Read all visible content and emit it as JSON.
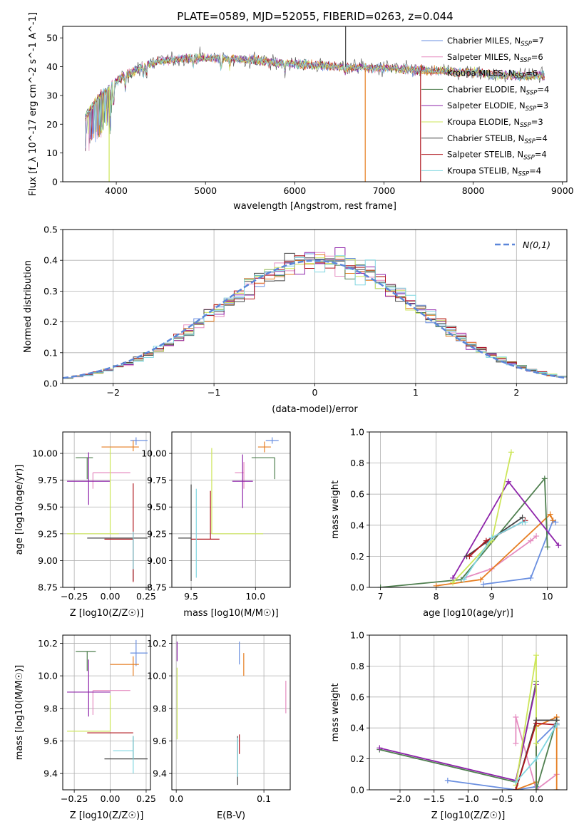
{
  "figure": {
    "title": "PLATE=0589, MJD=52055, FIBERID=0263, z=0.044"
  },
  "palette": {
    "blue": "#6a8fe0",
    "pink": "#e58cc0",
    "orange": "#e67e22",
    "darkgreen": "#4f7f4f",
    "purple": "#8e24aa",
    "lime": "#cde65a",
    "darkgray": "#444444",
    "red": "#b0171f",
    "cyan": "#7fd6e0",
    "gaussian": "#5b86d9",
    "grid": "#b0b0b0"
  },
  "chart_data": [
    {
      "id": "spectrum",
      "type": "line",
      "title": "PLATE=0589, MJD=52055, FIBERID=0263, z=0.044",
      "xlabel": "wavelength [Angstrom, rest frame]",
      "ylabel": "Flux [f_λ 10^-17 erg cm^-2 s^-1 A^-1]",
      "xlim": [
        3400,
        9050
      ],
      "ylim": [
        0,
        54
      ],
      "xticks": [
        4000,
        5000,
        6000,
        7000,
        8000,
        9000
      ],
      "yticks": [
        0,
        10,
        20,
        30,
        40,
        50
      ],
      "grid": false,
      "legend_position": "top-right",
      "legend": [
        {
          "label": "Chabrier MILES, N_SSP=7",
          "color": "blue"
        },
        {
          "label": "Salpeter MILES, N_SSP=6",
          "color": "pink"
        },
        {
          "label": "Kroupa MILES, N_SSP=6",
          "color": "orange"
        },
        {
          "label": "Chabrier ELODIE, N_SSP=4",
          "color": "darkgreen"
        },
        {
          "label": "Salpeter ELODIE, N_SSP=3",
          "color": "purple"
        },
        {
          "label": "Kroupa ELODIE, N_SSP=3",
          "color": "lime"
        },
        {
          "label": "Chabrier STELIB, N_SSP=4",
          "color": "darkgray"
        },
        {
          "label": "Salpeter STELIB, N_SSP=4",
          "color": "red"
        },
        {
          "label": "Kroupa STELIB, N_SSP=4",
          "color": "cyan"
        }
      ],
      "continuum": [
        [
          3650,
          22
        ],
        [
          3750,
          27
        ],
        [
          3850,
          31
        ],
        [
          3950,
          34
        ],
        [
          4100,
          37
        ],
        [
          4300,
          40
        ],
        [
          4500,
          42
        ],
        [
          4800,
          43
        ],
        [
          5200,
          43
        ],
        [
          5600,
          42
        ],
        [
          6000,
          41
        ],
        [
          6500,
          40
        ],
        [
          7000,
          39.5
        ],
        [
          7500,
          38.5
        ],
        [
          8000,
          38
        ],
        [
          8500,
          37
        ],
        [
          8800,
          37
        ]
      ],
      "spikes": [
        {
          "x": 3920,
          "y": 0,
          "color": "lime"
        },
        {
          "x": 6790,
          "y": 0,
          "color": "orange"
        },
        {
          "x": 7410,
          "y": 0,
          "color": "red"
        },
        {
          "x": 6570,
          "y": 54,
          "color": "darkgray"
        }
      ]
    },
    {
      "id": "residuals",
      "type": "histogram",
      "xlabel": "(data-model)/error",
      "ylabel": "Normed distribution",
      "xlim": [
        -2.5,
        2.5
      ],
      "ylim": [
        0,
        0.5
      ],
      "xticks": [
        -2,
        -1,
        0,
        1,
        2
      ],
      "yticks": [
        0.0,
        0.1,
        0.2,
        0.3,
        0.4,
        0.5
      ],
      "grid": true,
      "legend_position": "top-right",
      "legend": [
        {
          "label": "N(0,1)",
          "color": "gaussian",
          "style": "dashed"
        }
      ],
      "bin_width": 0.1,
      "bin_start": -2.5
    },
    {
      "id": "age-vs-Z",
      "type": "errorbar",
      "xlabel": "Z [log10(Z/Z☉)]",
      "ylabel": "age [log10(age/yr)]",
      "xlim": [
        -0.33,
        0.28
      ],
      "ylim": [
        8.75,
        10.2
      ],
      "xticks": [
        -0.25,
        0.0,
        0.25
      ],
      "yticks": [
        8.75,
        9.0,
        9.25,
        9.5,
        9.75,
        10.0
      ],
      "grid": true,
      "points": [
        {
          "color": "blue",
          "x": 0.18,
          "y": 10.12,
          "xerr": [
            0.04,
            0.08
          ],
          "yerr": [
            0.04,
            0.03
          ]
        },
        {
          "color": "orange",
          "x": 0.16,
          "y": 10.06,
          "xerr": [
            0.22,
            0.04
          ],
          "yerr": [
            0.04,
            0.06
          ]
        },
        {
          "color": "darkgreen",
          "x": -0.16,
          "y": 9.96,
          "xerr": [
            0.08,
            0.04
          ],
          "yerr": [
            0.2,
            0.0
          ]
        },
        {
          "color": "pink",
          "x": -0.12,
          "y": 9.82,
          "xerr": [
            0.0,
            0.26
          ],
          "yerr": [
            0.15,
            0.0
          ]
        },
        {
          "color": "purple",
          "x": -0.15,
          "y": 9.74,
          "xerr": [
            0.15,
            0.15
          ],
          "yerr": [
            0.22,
            0.27
          ]
        },
        {
          "color": "lime",
          "x": 0.0,
          "y": 9.25,
          "xerr": [
            0.3,
            0.06
          ],
          "yerr": [
            0.0,
            0.8
          ]
        },
        {
          "color": "darkgray",
          "x": 0.16,
          "y": 9.21,
          "xerr": [
            0.32,
            0.1
          ],
          "yerr": [
            0.4,
            0.0
          ]
        },
        {
          "color": "red",
          "x": 0.16,
          "y": 9.2,
          "xerr": [
            0.2,
            0.0
          ],
          "yerr": [
            0.4,
            0.52
          ]
        },
        {
          "color": "cyan",
          "x": 0.16,
          "y": 9.22,
          "xerr": [
            0.0,
            0.0
          ],
          "yerr": [
            0.3,
            0.05
          ]
        }
      ]
    },
    {
      "id": "age-vs-mass",
      "type": "errorbar",
      "xlabel": "mass [log10(M/M☉)]",
      "ylabel": "",
      "xlim": [
        9.35,
        10.27
      ],
      "ylim": [
        8.75,
        10.2
      ],
      "xticks": [
        9.5,
        10.0
      ],
      "yticks": [
        8.75,
        9.0,
        9.25,
        9.5,
        9.75,
        10.0
      ],
      "grid": true,
      "points": [
        {
          "color": "blue",
          "x": 10.13,
          "y": 10.12,
          "xerr": [
            0.05,
            0.05
          ],
          "yerr": [
            0.03,
            0.03
          ]
        },
        {
          "color": "orange",
          "x": 10.07,
          "y": 10.06,
          "xerr": [
            0.05,
            0.05
          ],
          "yerr": [
            0.05,
            0.05
          ]
        },
        {
          "color": "darkgreen",
          "x": 10.15,
          "y": 9.96,
          "xerr": [
            0.18,
            0.0
          ],
          "yerr": [
            0.2,
            0.0
          ]
        },
        {
          "color": "pink",
          "x": 9.91,
          "y": 9.82,
          "xerr": [
            0.07,
            0.0
          ],
          "yerr": [
            0.15,
            0.1
          ]
        },
        {
          "color": "purple",
          "x": 9.9,
          "y": 9.74,
          "xerr": [
            0.08,
            0.08
          ],
          "yerr": [
            0.25,
            0.25
          ]
        },
        {
          "color": "lime",
          "x": 9.66,
          "y": 9.25,
          "xerr": [
            0.0,
            0.4
          ],
          "yerr": [
            0.0,
            0.8
          ]
        },
        {
          "color": "darkgray",
          "x": 9.5,
          "y": 9.21,
          "xerr": [
            0.1,
            0.0
          ],
          "yerr": [
            0.4,
            0.5
          ]
        },
        {
          "color": "red",
          "x": 9.65,
          "y": 9.2,
          "xerr": [
            0.15,
            0.07
          ],
          "yerr": [
            0.0,
            0.45
          ]
        },
        {
          "color": "cyan",
          "x": 9.54,
          "y": 9.22,
          "xerr": [
            0.0,
            0.0
          ],
          "yerr": [
            0.38,
            0.45
          ]
        }
      ]
    },
    {
      "id": "weight-vs-age",
      "type": "line",
      "xlabel": "age [log10(age/yr)]",
      "ylabel": "mass weight",
      "xlim": [
        6.8,
        10.35
      ],
      "ylim": [
        0.0,
        1.0
      ],
      "xticks": [
        7,
        8,
        9,
        10
      ],
      "yticks": [
        0.0,
        0.2,
        0.4,
        0.6,
        0.8,
        1.0
      ],
      "grid": true,
      "series": [
        {
          "color": "blue",
          "x": [
            8.85,
            9.7,
            10.1,
            10.15
          ],
          "y": [
            0.02,
            0.06,
            0.43,
            0.42
          ]
        },
        {
          "color": "pink",
          "x": [
            8.5,
            9.0,
            9.7,
            9.8
          ],
          "y": [
            0.06,
            0.12,
            0.3,
            0.33
          ]
        },
        {
          "color": "orange",
          "x": [
            8.0,
            8.8,
            10.05,
            10.1
          ],
          "y": [
            0.01,
            0.05,
            0.47,
            0.43
          ]
        },
        {
          "color": "darkgreen",
          "x": [
            7.0,
            8.45,
            9.95,
            10.0
          ],
          "y": [
            0.0,
            0.05,
            0.7,
            0.26
          ]
        },
        {
          "color": "purple",
          "x": [
            8.3,
            9.3,
            10.2
          ],
          "y": [
            0.06,
            0.68,
            0.27
          ]
        },
        {
          "color": "lime",
          "x": [
            8.3,
            9.0,
            9.35
          ],
          "y": [
            0.03,
            0.3,
            0.87
          ]
        },
        {
          "color": "darkgray",
          "x": [
            8.55,
            8.9,
            9.55
          ],
          "y": [
            0.2,
            0.29,
            0.45
          ]
        },
        {
          "color": "red",
          "x": [
            8.6,
            8.9,
            9.6
          ],
          "y": [
            0.2,
            0.3,
            0.43
          ]
        },
        {
          "color": "cyan",
          "x": [
            8.5,
            9.0,
            9.55,
            9.6
          ],
          "y": [
            0.05,
            0.32,
            0.42,
            0.42
          ]
        }
      ]
    },
    {
      "id": "mass-vs-Z",
      "type": "errorbar",
      "xlabel": "Z [log10(Z/Z☉)]",
      "ylabel": "mass [log10(M/M☉)]",
      "xlim": [
        -0.33,
        0.28
      ],
      "ylim": [
        9.3,
        10.25
      ],
      "xticks": [
        -0.25,
        0.0,
        0.25
      ],
      "yticks": [
        9.4,
        9.6,
        9.8,
        10.0,
        10.2
      ],
      "grid": true,
      "points": [
        {
          "color": "blue",
          "x": 0.18,
          "y": 10.14,
          "xerr": [
            0.04,
            0.08
          ],
          "yerr": [
            0.08,
            0.08
          ]
        },
        {
          "color": "orange",
          "x": 0.16,
          "y": 10.07,
          "xerr": [
            0.16,
            0.04
          ],
          "yerr": [
            0.07,
            0.05
          ]
        },
        {
          "color": "darkgreen",
          "x": -0.16,
          "y": 10.15,
          "xerr": [
            0.08,
            0.06
          ],
          "yerr": [
            0.12,
            0.0
          ]
        },
        {
          "color": "pink",
          "x": -0.12,
          "y": 9.91,
          "xerr": [
            0.0,
            0.26
          ],
          "yerr": [
            0.15,
            0.0
          ]
        },
        {
          "color": "purple",
          "x": -0.15,
          "y": 9.9,
          "xerr": [
            0.15,
            0.15
          ],
          "yerr": [
            0.15,
            0.2
          ]
        },
        {
          "color": "lime",
          "x": 0.0,
          "y": 9.66,
          "xerr": [
            0.3,
            0.0
          ],
          "yerr": [
            0.0,
            0.22
          ]
        },
        {
          "color": "darkgray",
          "x": 0.16,
          "y": 9.49,
          "xerr": [
            0.2,
            0.1
          ],
          "yerr": [
            0.0,
            0.14
          ]
        },
        {
          "color": "red",
          "x": 0.16,
          "y": 9.65,
          "xerr": [
            0.32,
            0.0
          ],
          "yerr": [
            0.0,
            0.0
          ]
        },
        {
          "color": "cyan",
          "x": 0.16,
          "y": 9.54,
          "xerr": [
            0.14,
            0.0
          ],
          "yerr": [
            0.14,
            0.09
          ]
        }
      ]
    },
    {
      "id": "mass-vs-EBV",
      "type": "errorbar",
      "xlabel": "E(B-V)",
      "ylabel": "",
      "xlim": [
        -0.005,
        0.13
      ],
      "ylim": [
        9.3,
        10.25
      ],
      "xticks": [
        0.0,
        0.1
      ],
      "yticks": [
        9.4,
        9.6,
        9.8,
        10.0,
        10.2
      ],
      "grid": true,
      "points": [
        {
          "color": "blue",
          "x": 0.072,
          "y": 10.14,
          "xerr": [
            0.0,
            0.0
          ],
          "yerr": [
            0.07,
            0.07
          ]
        },
        {
          "color": "orange",
          "x": 0.077,
          "y": 10.07,
          "xerr": [
            0.0,
            0.0
          ],
          "yerr": [
            0.07,
            0.07
          ]
        },
        {
          "color": "purple",
          "x": 0.001,
          "y": 10.15,
          "xerr": [
            0.0,
            0.0
          ],
          "yerr": [
            0.06,
            0.06
          ]
        },
        {
          "color": "pink",
          "x": 0.125,
          "y": 9.87,
          "xerr": [
            0.0,
            0.0
          ],
          "yerr": [
            0.1,
            0.1
          ]
        },
        {
          "color": "lime",
          "x": 0.001,
          "y": 9.83,
          "xerr": [
            0.0,
            0.0
          ],
          "yerr": [
            0.22,
            0.22
          ]
        },
        {
          "color": "red",
          "x": 0.072,
          "y": 9.58,
          "xerr": [
            0.0,
            0.0
          ],
          "yerr": [
            0.06,
            0.06
          ]
        },
        {
          "color": "darkgray",
          "x": 0.07,
          "y": 9.48,
          "xerr": [
            0.0,
            0.0
          ],
          "yerr": [
            0.15,
            0.15
          ]
        },
        {
          "color": "cyan",
          "x": 0.07,
          "y": 9.5,
          "xerr": [
            0.0,
            0.0
          ],
          "yerr": [
            0.12,
            0.12
          ]
        }
      ]
    },
    {
      "id": "weight-vs-Z",
      "type": "line",
      "xlabel": "Z [log10(Z/Z☉)]",
      "ylabel": "mass weight",
      "xlim": [
        -2.45,
        0.45
      ],
      "ylim": [
        0.0,
        1.0
      ],
      "xticks": [
        -2.0,
        -1.5,
        -1.0,
        -0.5,
        0.0
      ],
      "yticks": [
        0.0,
        0.2,
        0.4,
        0.6,
        0.8,
        1.0
      ],
      "grid": true,
      "series": [
        {
          "color": "blue",
          "x": [
            -1.3,
            -0.3,
            0.0,
            0.0,
            0.3
          ],
          "y": [
            0.06,
            0.0,
            0.02,
            0.3,
            0.43
          ]
        },
        {
          "color": "pink",
          "x": [
            -0.3,
            -0.3,
            0.0,
            0.3
          ],
          "y": [
            0.3,
            0.47,
            0.0,
            0.1
          ]
        },
        {
          "color": "orange",
          "x": [
            -0.3,
            0.0,
            0.0,
            0.3,
            0.3
          ],
          "y": [
            0.0,
            0.05,
            0.41,
            0.47,
            0.0
          ]
        },
        {
          "color": "darkgreen",
          "x": [
            -2.3,
            -0.3,
            0.0,
            0.0,
            0.3
          ],
          "y": [
            0.26,
            0.05,
            0.7,
            0.0,
            0.45
          ]
        },
        {
          "color": "purple",
          "x": [
            -2.3,
            -0.3,
            0.0
          ],
          "y": [
            0.27,
            0.06,
            0.68
          ]
        },
        {
          "color": "lime",
          "x": [
            -0.3,
            0.0,
            0.0
          ],
          "y": [
            0.03,
            0.87,
            0.3
          ]
        },
        {
          "color": "darkgray",
          "x": [
            -0.3,
            0.0,
            0.3
          ],
          "y": [
            0.0,
            0.45,
            0.45
          ]
        },
        {
          "color": "red",
          "x": [
            -0.3,
            0.0,
            0.3
          ],
          "y": [
            0.0,
            0.43,
            0.42
          ]
        },
        {
          "color": "cyan",
          "x": [
            -0.3,
            0.0,
            0.3
          ],
          "y": [
            0.05,
            0.2,
            0.42
          ]
        }
      ]
    }
  ]
}
